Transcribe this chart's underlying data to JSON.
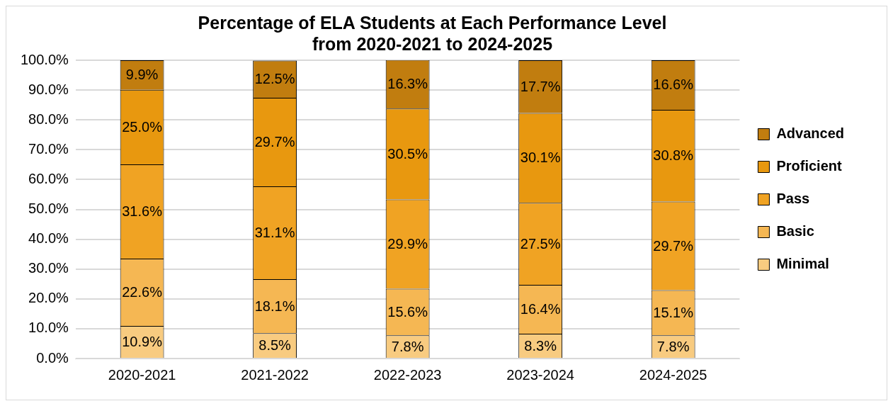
{
  "chart_data": {
    "type": "bar",
    "title": "Percentage of ELA Students at Each Performance Level\nfrom 2020-2021 to 2024-2025",
    "categories": [
      "2020-2021",
      "2021-2022",
      "2022-2023",
      "2023-2024",
      "2024-2025"
    ],
    "stacked": true,
    "legend": "right",
    "grid": "y",
    "ylim": [
      0,
      100
    ],
    "yticks": [
      {
        "value": 0,
        "label": "0.0%"
      },
      {
        "value": 10,
        "label": "10.0%"
      },
      {
        "value": 20,
        "label": "20.0%"
      },
      {
        "value": 30,
        "label": "30.0%"
      },
      {
        "value": 40,
        "label": "40.0%"
      },
      {
        "value": 50,
        "label": "50.0%"
      },
      {
        "value": 60,
        "label": "60.0%"
      },
      {
        "value": 70,
        "label": "70.0%"
      },
      {
        "value": 80,
        "label": "80.0%"
      },
      {
        "value": 90,
        "label": "90.0%"
      },
      {
        "value": 100,
        "label": "100.0%"
      }
    ],
    "series": [
      {
        "name": "Minimal",
        "color": "#f8cb80",
        "values": [
          10.9,
          8.5,
          7.8,
          8.3,
          7.8
        ],
        "value_labels": [
          "10.9%",
          "8.5%",
          "7.8%",
          "8.3%",
          "7.8%"
        ]
      },
      {
        "name": "Basic",
        "color": "#f5b753",
        "values": [
          22.6,
          18.1,
          15.6,
          16.4,
          15.1
        ],
        "value_labels": [
          "22.6%",
          "18.1%",
          "15.6%",
          "16.4%",
          "15.1%"
        ]
      },
      {
        "name": "Pass",
        "color": "#f0a323",
        "values": [
          31.6,
          31.1,
          29.9,
          27.5,
          29.7
        ],
        "value_labels": [
          "31.6%",
          "31.1%",
          "29.9%",
          "27.5%",
          "29.7%"
        ]
      },
      {
        "name": "Proficient",
        "color": "#e8980f",
        "values": [
          25.0,
          29.7,
          30.5,
          30.1,
          30.8
        ],
        "value_labels": [
          "25.0%",
          "29.7%",
          "30.5%",
          "30.1%",
          "30.8%"
        ]
      },
      {
        "name": "Advanced",
        "color": "#c17d0f",
        "values": [
          9.9,
          12.5,
          16.3,
          17.7,
          16.6
        ],
        "value_labels": [
          "9.9%",
          "12.5%",
          "16.3%",
          "17.7%",
          "16.6%"
        ]
      }
    ]
  }
}
